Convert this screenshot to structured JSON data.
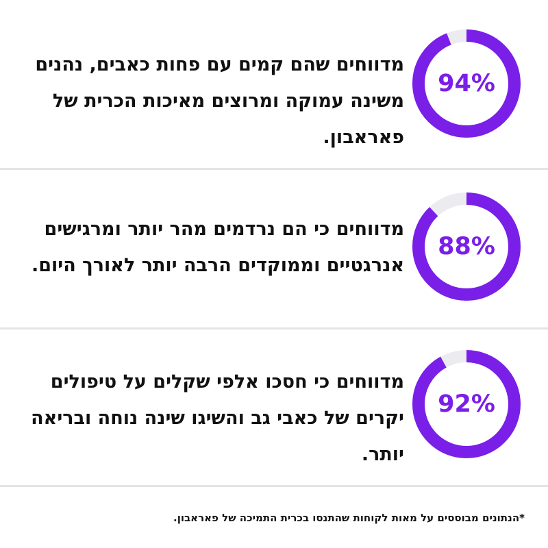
{
  "colors": {
    "accent": "#7a1fe8",
    "track": "#ececf0",
    "divider": "#e4e4e6",
    "text": "#111111"
  },
  "stats": [
    {
      "percent": 94,
      "label": "94%",
      "text": "מדווחים שהם קמים עם פחות כאבים, נהנים משינה עמוקה ומרוצים מאיכות הכרית של פאראבון."
    },
    {
      "percent": 88,
      "label": "88%",
      "text": "מדווחים כי הם נרדמים מהר יותר ומרגישים אנרגטיים וממוקדים הרבה יותר לאורך היום."
    },
    {
      "percent": 92,
      "label": "92%",
      "text": "מדווחים כי חסכו אלפי שקלים על טיפולים יקרים של כאבי גב והשיגו שינה נוחה ובריאה יותר."
    }
  ],
  "footnote": "*הנתונים מבוססים על מאות לקוחות שהתנסו בכרית התמיכה של פאראבון."
}
